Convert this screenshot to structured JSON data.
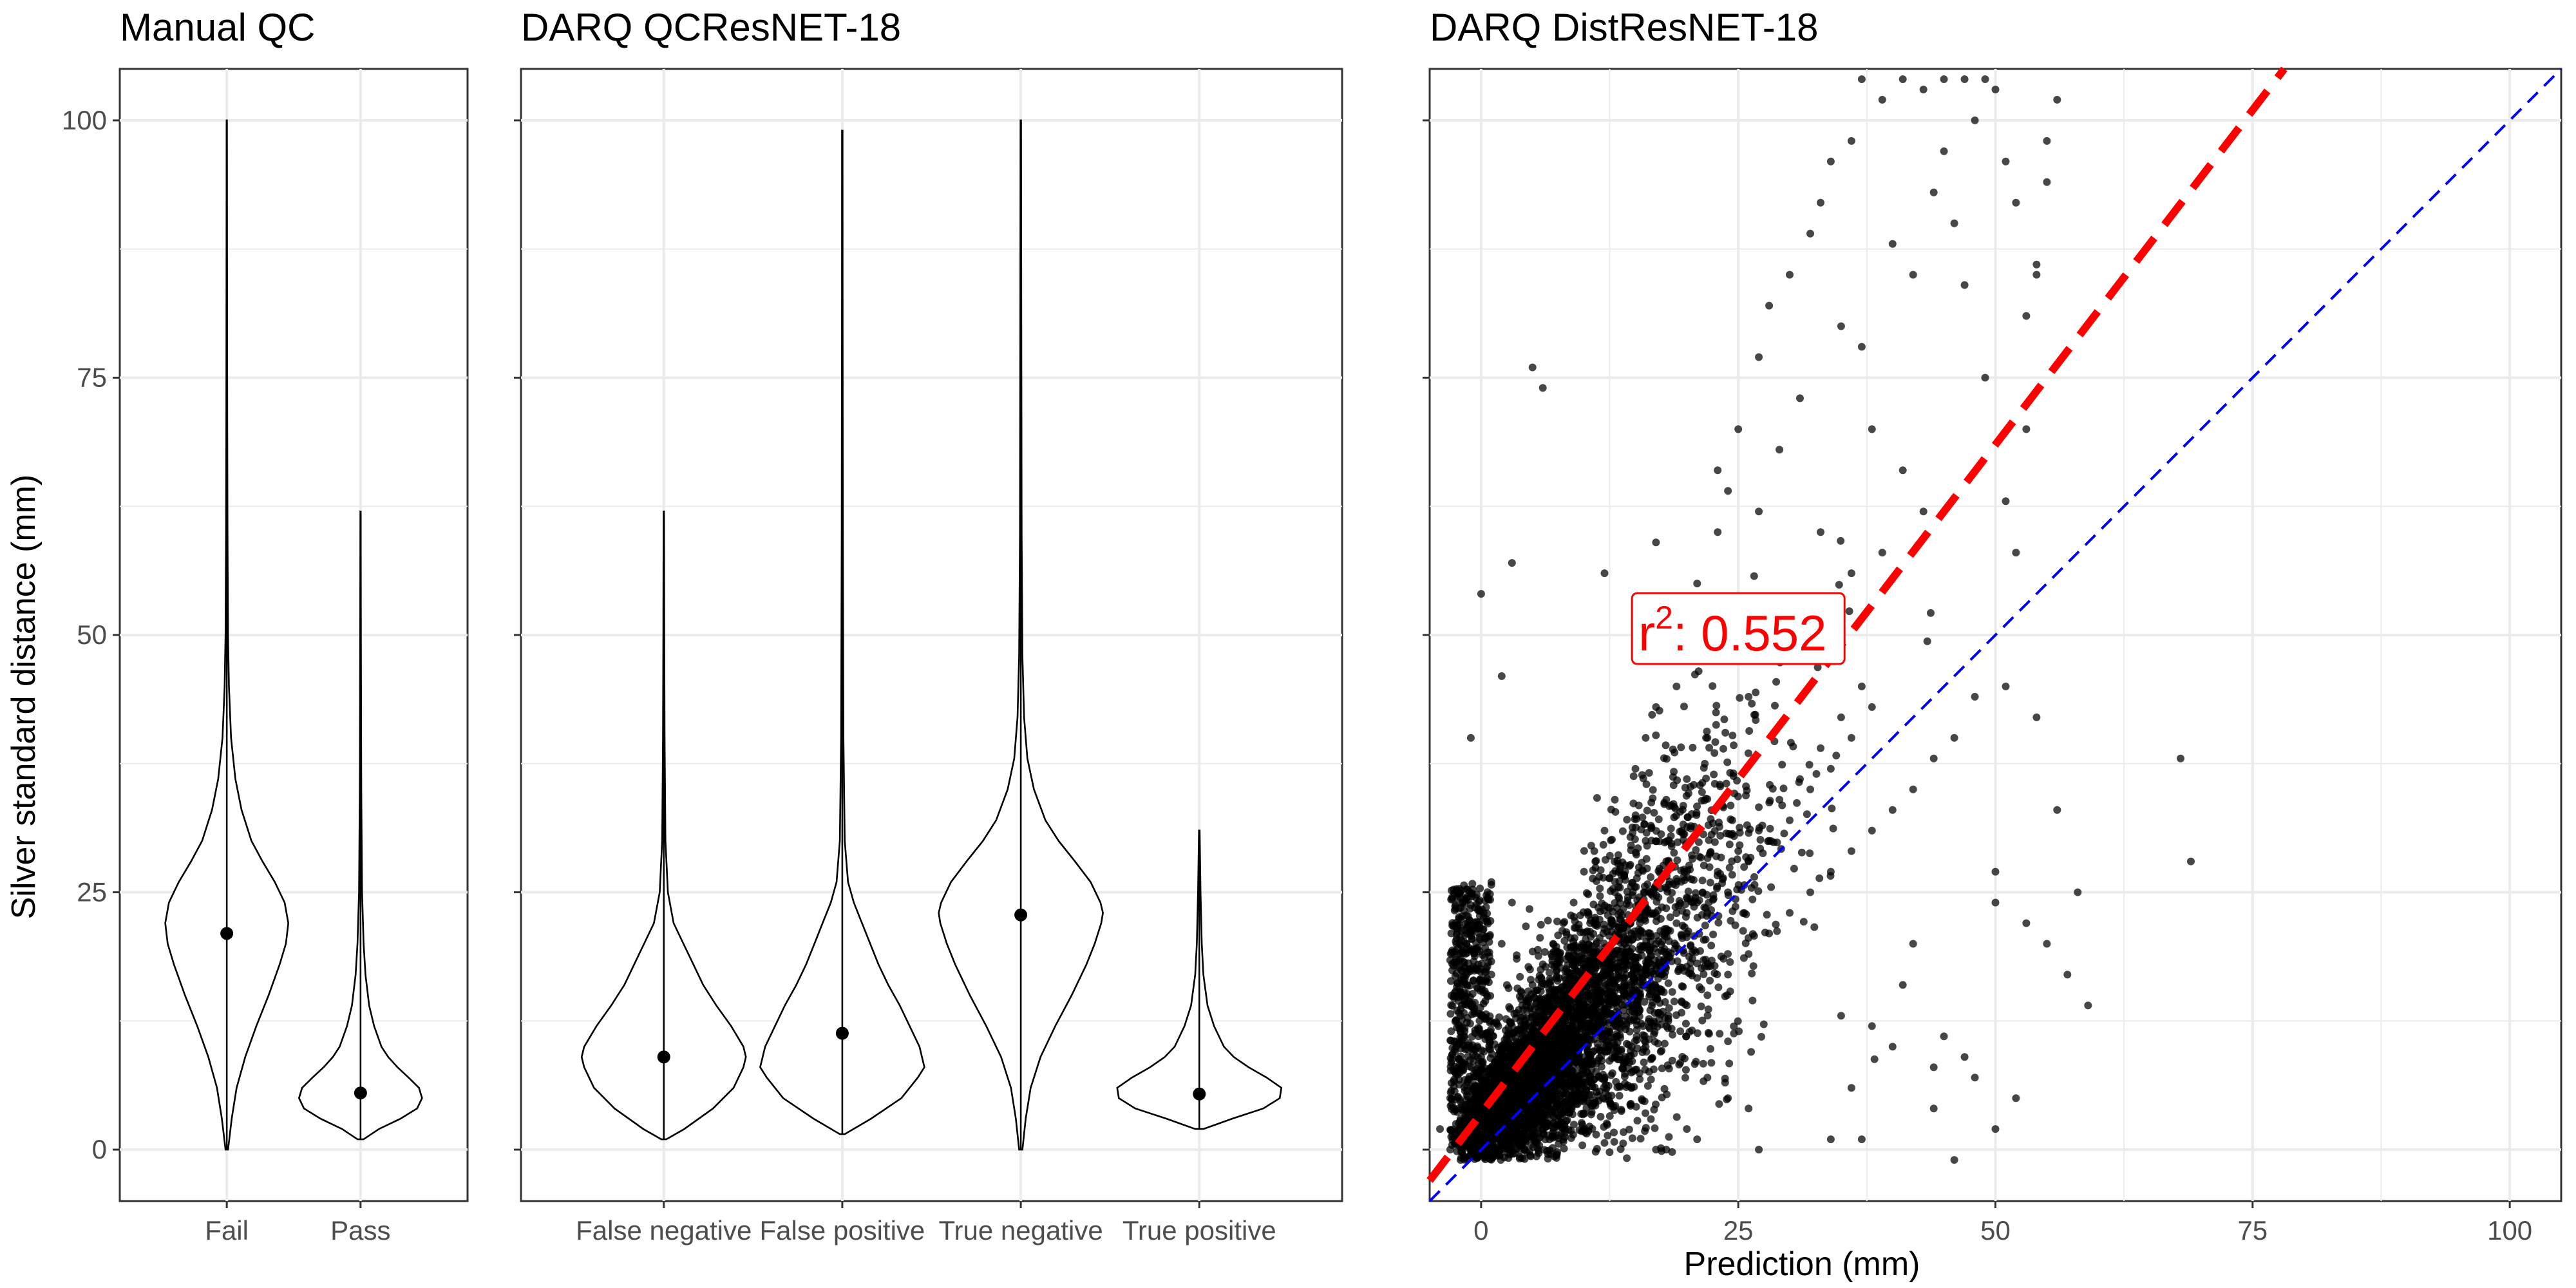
{
  "chart_data": [
    {
      "type": "violin",
      "title": "Manual QC",
      "ylabel": "Silver standard distance (mm)",
      "xlabel": "",
      "ylim": [
        -5,
        105
      ],
      "yticks": [
        0,
        25,
        50,
        75,
        100
      ],
      "grid": true,
      "categories": [
        "Fail",
        "Pass"
      ],
      "violins": [
        {
          "category": "Fail",
          "mean": 21,
          "min": 0,
          "max": 100,
          "density": [
            [
              0,
              0.02
            ],
            [
              3,
              0.08
            ],
            [
              6,
              0.16
            ],
            [
              9,
              0.3
            ],
            [
              12,
              0.48
            ],
            [
              15,
              0.68
            ],
            [
              18,
              0.86
            ],
            [
              20,
              0.96
            ],
            [
              22,
              1.0
            ],
            [
              24,
              0.94
            ],
            [
              26,
              0.78
            ],
            [
              28,
              0.58
            ],
            [
              30,
              0.4
            ],
            [
              33,
              0.24
            ],
            [
              36,
              0.14
            ],
            [
              40,
              0.07
            ],
            [
              45,
              0.035
            ],
            [
              50,
              0.02
            ],
            [
              60,
              0.012
            ],
            [
              70,
              0.008
            ],
            [
              85,
              0.005
            ],
            [
              100,
              0.003
            ]
          ]
        },
        {
          "category": "Pass",
          "mean": 5.5,
          "min": 1,
          "max": 62,
          "density": [
            [
              1,
              0.05
            ],
            [
              2,
              0.3
            ],
            [
              3,
              0.65
            ],
            [
              4,
              0.92
            ],
            [
              5,
              1.0
            ],
            [
              6,
              0.95
            ],
            [
              7,
              0.78
            ],
            [
              8,
              0.6
            ],
            [
              9,
              0.45
            ],
            [
              10,
              0.34
            ],
            [
              12,
              0.22
            ],
            [
              14,
              0.14
            ],
            [
              17,
              0.08
            ],
            [
              20,
              0.05
            ],
            [
              25,
              0.025
            ],
            [
              35,
              0.012
            ],
            [
              50,
              0.006
            ],
            [
              62,
              0.003
            ]
          ]
        }
      ]
    },
    {
      "type": "violin",
      "title": "DARQ QCResNET-18",
      "ylim": [
        -5,
        105
      ],
      "yticks": [
        0,
        25,
        50,
        75,
        100
      ],
      "grid": true,
      "categories": [
        "False negative",
        "False positive",
        "True negative",
        "True positive"
      ],
      "violins": [
        {
          "category": "False negative",
          "mean": 9,
          "min": 1,
          "max": 62,
          "density": [
            [
              1,
              0.03
            ],
            [
              2,
              0.25
            ],
            [
              4,
              0.6
            ],
            [
              6,
              0.85
            ],
            [
              8,
              0.97
            ],
            [
              9,
              1.0
            ],
            [
              10,
              0.97
            ],
            [
              12,
              0.82
            ],
            [
              14,
              0.64
            ],
            [
              16,
              0.48
            ],
            [
              18,
              0.36
            ],
            [
              20,
              0.24
            ],
            [
              22,
              0.12
            ],
            [
              25,
              0.05
            ],
            [
              30,
              0.02
            ],
            [
              40,
              0.01
            ],
            [
              50,
              0.006
            ],
            [
              62,
              0.003
            ]
          ]
        },
        {
          "category": "False positive",
          "mean": 11.3,
          "min": 1.5,
          "max": 99,
          "density": [
            [
              1.5,
              0.03
            ],
            [
              3,
              0.35
            ],
            [
              5,
              0.72
            ],
            [
              7,
              0.92
            ],
            [
              8,
              1.0
            ],
            [
              10,
              0.94
            ],
            [
              12,
              0.82
            ],
            [
              14,
              0.7
            ],
            [
              16,
              0.56
            ],
            [
              18,
              0.44
            ],
            [
              20,
              0.34
            ],
            [
              22,
              0.24
            ],
            [
              24,
              0.14
            ],
            [
              26,
              0.07
            ],
            [
              30,
              0.03
            ],
            [
              40,
              0.014
            ],
            [
              60,
              0.007
            ],
            [
              80,
              0.004
            ],
            [
              99,
              0.003
            ]
          ]
        },
        {
          "category": "True negative",
          "mean": 22.8,
          "min": 0,
          "max": 100,
          "density": [
            [
              0,
              0.02
            ],
            [
              3,
              0.06
            ],
            [
              6,
              0.12
            ],
            [
              9,
              0.24
            ],
            [
              12,
              0.42
            ],
            [
              15,
              0.62
            ],
            [
              18,
              0.8
            ],
            [
              20,
              0.9
            ],
            [
              22,
              0.98
            ],
            [
              23,
              1.0
            ],
            [
              24,
              0.97
            ],
            [
              26,
              0.85
            ],
            [
              28,
              0.66
            ],
            [
              30,
              0.46
            ],
            [
              32,
              0.3
            ],
            [
              35,
              0.16
            ],
            [
              38,
              0.08
            ],
            [
              42,
              0.04
            ],
            [
              48,
              0.02
            ],
            [
              60,
              0.01
            ],
            [
              80,
              0.006
            ],
            [
              100,
              0.003
            ]
          ]
        },
        {
          "category": "True positive",
          "mean": 5.4,
          "min": 2,
          "max": 31,
          "density": [
            [
              2,
              0.05
            ],
            [
              3,
              0.4
            ],
            [
              4,
              0.78
            ],
            [
              5,
              0.98
            ],
            [
              6,
              1.0
            ],
            [
              7,
              0.82
            ],
            [
              8,
              0.6
            ],
            [
              9,
              0.42
            ],
            [
              10,
              0.3
            ],
            [
              12,
              0.18
            ],
            [
              14,
              0.1
            ],
            [
              17,
              0.05
            ],
            [
              20,
              0.03
            ],
            [
              25,
              0.015
            ],
            [
              31,
              0.004
            ]
          ]
        }
      ]
    },
    {
      "type": "scatter",
      "title": "DARQ DistResNET-18",
      "xlabel": "Prediction (mm)",
      "xlim": [
        -5,
        105
      ],
      "ylim": [
        -5,
        105
      ],
      "xticks": [
        0,
        25,
        50,
        75,
        100
      ],
      "grid": true,
      "points_summary": "dense cloud concentrated near 0-40 mm on both axes, spreading upward to ~105 mm",
      "points": [
        [
          -2,
          1
        ],
        [
          0,
          2
        ],
        [
          1,
          3
        ],
        [
          2,
          4
        ],
        [
          3,
          5
        ],
        [
          4,
          6
        ],
        [
          5,
          8
        ],
        [
          6,
          7
        ],
        [
          7,
          10
        ],
        [
          8,
          9
        ],
        [
          9,
          12
        ],
        [
          10,
          11
        ],
        [
          11,
          14
        ],
        [
          12,
          13
        ],
        [
          13,
          16
        ],
        [
          14,
          15
        ],
        [
          15,
          18
        ],
        [
          16,
          17
        ],
        [
          17,
          20
        ],
        [
          18,
          19
        ],
        [
          19,
          22
        ],
        [
          20,
          21
        ],
        [
          21,
          24
        ],
        [
          22,
          23
        ],
        [
          23,
          27
        ],
        [
          24,
          25
        ],
        [
          25,
          29
        ],
        [
          26,
          28
        ],
        [
          27,
          31
        ],
        [
          28,
          30
        ],
        [
          29,
          34
        ],
        [
          30,
          32
        ],
        [
          31,
          36
        ],
        [
          32,
          35
        ],
        [
          33,
          39
        ],
        [
          34,
          37
        ],
        [
          35,
          42
        ],
        [
          36,
          40
        ],
        [
          37,
          45
        ],
        [
          38,
          43
        ],
        [
          0,
          13
        ],
        [
          0,
          9
        ],
        [
          1,
          17
        ],
        [
          2,
          20
        ],
        [
          1,
          26
        ],
        [
          3,
          24
        ],
        [
          -1,
          40
        ],
        [
          0,
          54
        ],
        [
          3,
          57
        ],
        [
          5,
          76
        ],
        [
          6,
          74
        ],
        [
          2,
          46
        ],
        [
          17,
          59
        ],
        [
          12,
          56
        ],
        [
          15,
          50
        ],
        [
          23,
          66
        ],
        [
          19,
          48
        ],
        [
          27,
          62
        ],
        [
          31,
          73
        ],
        [
          29,
          68
        ],
        [
          35,
          80
        ],
        [
          37,
          78
        ],
        [
          38,
          70
        ],
        [
          40,
          88
        ],
        [
          42,
          85
        ],
        [
          44,
          93
        ],
        [
          45,
          97
        ],
        [
          46,
          90
        ],
        [
          47,
          84
        ],
        [
          48,
          100
        ],
        [
          50,
          103
        ],
        [
          51,
          96
        ],
        [
          52,
          92
        ],
        [
          53,
          81
        ],
        [
          54,
          86
        ],
        [
          55,
          94
        ],
        [
          49,
          75
        ],
        [
          43,
          62
        ],
        [
          41,
          66
        ],
        [
          39,
          58
        ],
        [
          36,
          56
        ],
        [
          33,
          60
        ],
        [
          34,
          52
        ],
        [
          30,
          48
        ],
        [
          26,
          44
        ],
        [
          22,
          40
        ],
        [
          20,
          36
        ],
        [
          18,
          34
        ],
        [
          16,
          30
        ],
        [
          14,
          27
        ],
        [
          13,
          25
        ],
        [
          11,
          22
        ],
        [
          9,
          19
        ],
        [
          7,
          15
        ],
        [
          5,
          12
        ],
        [
          4,
          10
        ],
        [
          3,
          8
        ],
        [
          2,
          6
        ],
        [
          1,
          5
        ],
        [
          6,
          3
        ],
        [
          8,
          4
        ],
        [
          10,
          5
        ],
        [
          12,
          7
        ],
        [
          14,
          9
        ],
        [
          16,
          10
        ],
        [
          18,
          12
        ],
        [
          20,
          14
        ],
        [
          22,
          15
        ],
        [
          24,
          17
        ],
        [
          26,
          19
        ],
        [
          28,
          21
        ],
        [
          30,
          23
        ],
        [
          32,
          25
        ],
        [
          34,
          27
        ],
        [
          36,
          29
        ],
        [
          38,
          31
        ],
        [
          40,
          33
        ],
        [
          42,
          35
        ],
        [
          44,
          38
        ],
        [
          46,
          40
        ],
        [
          48,
          44
        ],
        [
          50,
          27
        ],
        [
          50,
          24
        ],
        [
          51,
          45
        ],
        [
          47,
          9
        ],
        [
          45,
          11
        ],
        [
          44,
          8
        ],
        [
          42,
          20
        ],
        [
          41,
          16
        ],
        [
          40,
          10
        ],
        [
          38,
          12
        ],
        [
          36,
          6
        ],
        [
          35,
          13
        ],
        [
          37,
          1
        ],
        [
          34,
          1
        ],
        [
          27,
          0
        ],
        [
          26,
          4
        ],
        [
          24,
          5
        ],
        [
          22,
          7
        ],
        [
          20,
          2
        ],
        [
          18,
          0
        ],
        [
          17,
          0
        ],
        [
          21,
          1
        ],
        [
          57,
          17
        ],
        [
          59,
          14
        ],
        [
          68,
          38
        ],
        [
          69,
          28
        ],
        [
          52,
          5
        ],
        [
          50,
          2
        ],
        [
          46,
          -1
        ],
        [
          48,
          7
        ],
        [
          44,
          4
        ],
        [
          55,
          20
        ],
        [
          53,
          22
        ],
        [
          58,
          25
        ],
        [
          56,
          33
        ],
        [
          54,
          42
        ],
        [
          52,
          58
        ],
        [
          51,
          63
        ],
        [
          53,
          70
        ],
        [
          54,
          85
        ],
        [
          55,
          98
        ],
        [
          56,
          102
        ],
        [
          49,
          104
        ],
        [
          47,
          104
        ],
        [
          45,
          104
        ],
        [
          43,
          103
        ],
        [
          41,
          104
        ],
        [
          39,
          102
        ],
        [
          37,
          104
        ],
        [
          36,
          98
        ],
        [
          34,
          96
        ],
        [
          33,
          92
        ],
        [
          32,
          89
        ],
        [
          30,
          85
        ],
        [
          28,
          82
        ],
        [
          27,
          77
        ],
        [
          25,
          70
        ],
        [
          24,
          64
        ],
        [
          23,
          60
        ],
        [
          21,
          55
        ],
        [
          20,
          52
        ],
        [
          19,
          45
        ],
        [
          17,
          43
        ],
        [
          16,
          40
        ],
        [
          15,
          37
        ],
        [
          13,
          34
        ],
        [
          12,
          31
        ],
        [
          11,
          29
        ],
        [
          10,
          27
        ],
        [
          9,
          24
        ],
        [
          8,
          22
        ],
        [
          7,
          20
        ],
        [
          6,
          18
        ],
        [
          5,
          16
        ],
        [
          4,
          14
        ],
        [
          3,
          12
        ],
        [
          2,
          10
        ],
        [
          1,
          8
        ],
        [
          0,
          6
        ],
        [
          -1,
          4
        ],
        [
          -2,
          3
        ],
        [
          -3,
          5
        ],
        [
          -4,
          2
        ],
        [
          -3,
          0
        ],
        [
          -2,
          -1
        ],
        [
          -1,
          0
        ]
      ],
      "fit_line": {
        "slope": 1.3,
        "intercept": 3.5,
        "color": "#ff0000",
        "style": "dashed"
      },
      "identity_line": {
        "slope": 1,
        "intercept": 0,
        "color": "#0000ff",
        "style": "dashed"
      },
      "annotation": {
        "label": "r",
        "superscript": "2",
        "value_text": ": 0.552",
        "x": 25,
        "y": 50,
        "color": "#ff0000"
      }
    }
  ]
}
